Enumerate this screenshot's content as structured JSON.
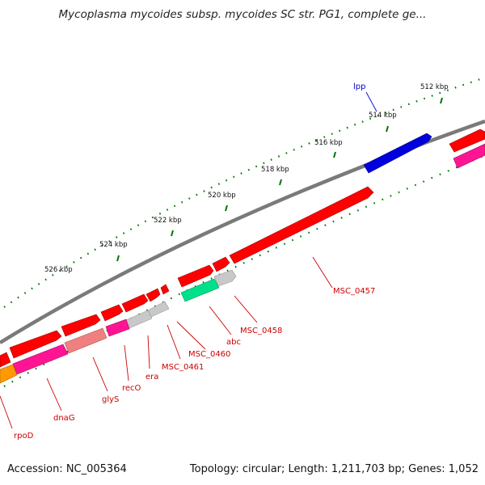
{
  "title": "Mycoplasma mycoides subsp. mycoides SC str. PG1, complete ge...",
  "footer": {
    "accession": "Accession: NC_005364",
    "summary": "Topology: circular; Length: 1,211,703 bp; Genes: 1,052"
  },
  "tick_labels": [
    "512 kbp",
    "514 kbp",
    "516 kbp",
    "518 kbp",
    "520 kbp",
    "522 kbp",
    "524 kbp",
    "526 kbp"
  ],
  "gene_labels": {
    "lpp": "lpp",
    "msc0457": "MSC_0457",
    "msc0458": "MSC_0458",
    "abc": "abc",
    "msc0460": "MSC_0460",
    "msc0461": "MSC_0461",
    "era": "era",
    "recO": "recO",
    "glyS": "glyS",
    "dnaG": "dnaG",
    "rpoD": "rpoD"
  },
  "colors": {
    "backbone": "#7a7a7a",
    "forward_gene": "#ff0000",
    "lpp_gene": "#0000dd",
    "magenta_gene": "#ff1493",
    "pink_gene": "#f08080",
    "grey_gene": "#c0c0c0",
    "green_gene": "#00e08a",
    "orange_gene": "#ff9900",
    "tick": "#007700",
    "label_red": "#cc0000",
    "label_blue": "#0000cc"
  }
}
